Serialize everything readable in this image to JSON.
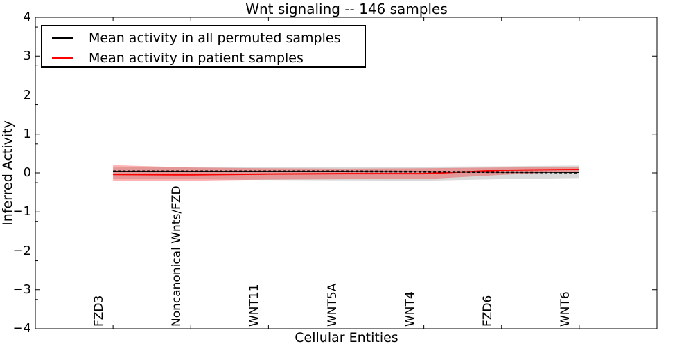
{
  "title": "Wnt signaling -- 146 samples",
  "axes": {
    "xlabel": "Cellular Entities",
    "ylabel": "Inferred Activity"
  },
  "legend": {
    "position": "upper left",
    "items": [
      {
        "label": "Mean activity in all permuted samples",
        "color": "#000000"
      },
      {
        "label": "Mean activity in patient samples",
        "color": "#ff0000"
      }
    ]
  },
  "chart_data": {
    "type": "line",
    "title": "Wnt signaling -- 146 samples",
    "xlabel": "Cellular Entities",
    "ylabel": "Inferred Activity",
    "xlim": [
      -1,
      7
    ],
    "ylim": [
      -4,
      4
    ],
    "yticks": [
      4,
      3,
      2,
      1,
      0,
      -1,
      -2,
      -3,
      -4
    ],
    "grid": false,
    "legend_position": "upper left",
    "categories": [
      "FZD3",
      "Noncanonical Wnts/FZD",
      "WNT11",
      "WNT5A",
      "WNT4",
      "FZD6",
      "WNT6"
    ],
    "series": [
      {
        "name": "Mean activity in all permuted samples",
        "color": "#000000",
        "line_style": "solid with dashed overlay",
        "values": [
          0.04,
          0.04,
          0.04,
          0.04,
          0.03,
          0.02,
          0.01
        ],
        "band_upper": [
          0.14,
          0.15,
          0.15,
          0.16,
          0.16,
          0.17,
          0.19
        ],
        "band_lower": [
          -0.14,
          -0.16,
          -0.18,
          -0.19,
          -0.2,
          -0.16,
          -0.13
        ],
        "band_color": "rgba(0,0,0,0.15)"
      },
      {
        "name": "Mean activity in patient samples",
        "color": "#ff0000",
        "line_style": "solid",
        "values": [
          -0.04,
          -0.05,
          -0.03,
          -0.02,
          -0.02,
          0.07,
          0.09
        ],
        "band_upper": [
          0.2,
          0.14,
          0.12,
          0.11,
          0.12,
          0.14,
          0.15
        ],
        "band_lower": [
          -0.21,
          -0.2,
          -0.17,
          -0.16,
          -0.16,
          -0.05,
          0.04
        ],
        "band_color": "rgba(255,0,0,0.30)"
      }
    ]
  }
}
